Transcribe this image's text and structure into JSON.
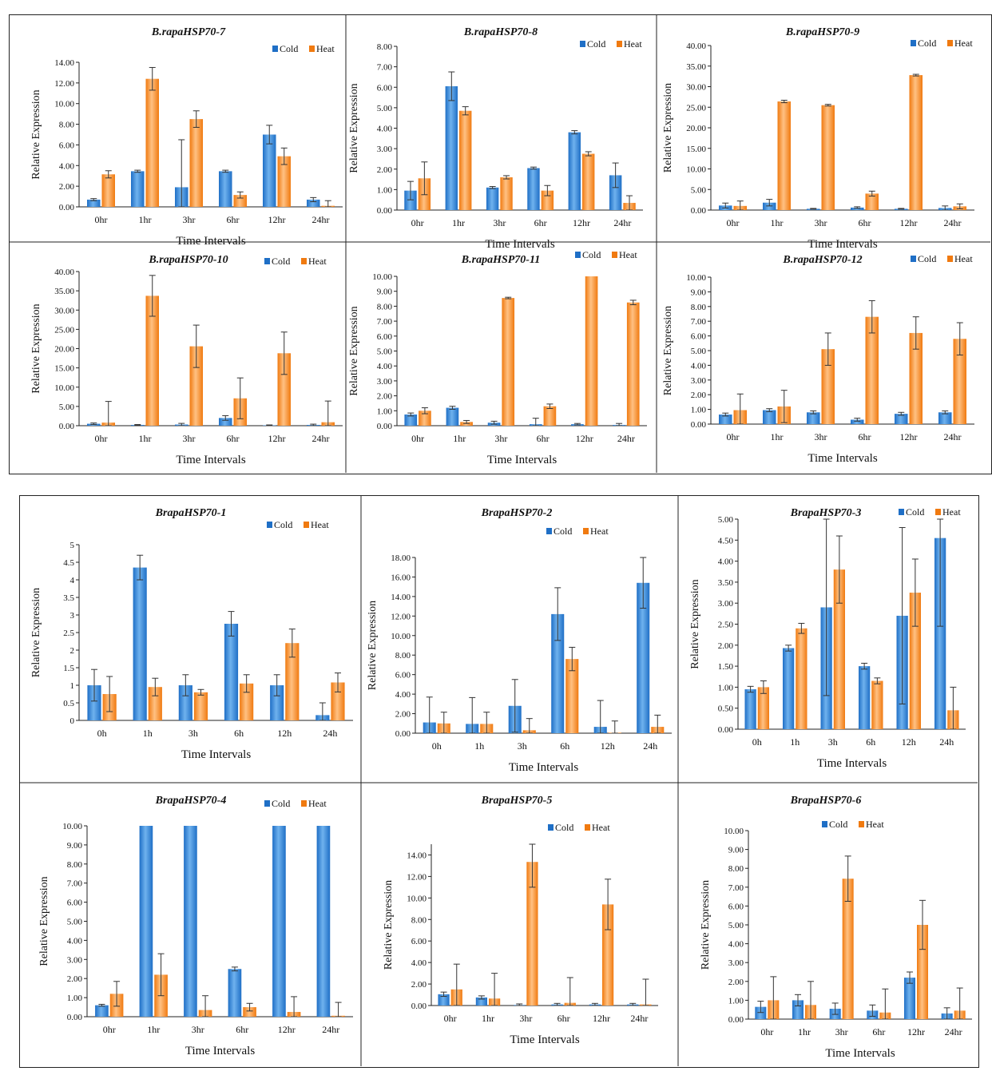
{
  "colors": {
    "cold": "#1f6fc6",
    "cold_light": "#6fb2ee",
    "heat": "#f07a10",
    "heat_light": "#ffc183",
    "axis": "#222222",
    "error": "#333333"
  },
  "legend": {
    "cold": "Cold",
    "heat": "Heat"
  },
  "chart_data": [
    {
      "type": "bar",
      "title": "B.rapaHSP70-7",
      "xlabel": "Time Intervals",
      "ylabel": "Relative Expression",
      "categories": [
        "0hr",
        "1hr",
        "3hr",
        "6hr",
        "12hr",
        "24hr"
      ],
      "ylim": [
        0,
        14
      ],
      "yticks": [
        "0.00",
        "2.00",
        "4.00",
        "6.00",
        "8.00",
        "10.00",
        "12.00",
        "14.00"
      ],
      "legend_position": "top-right",
      "series": [
        {
          "name": "Cold",
          "values": [
            0.7,
            3.45,
            1.9,
            3.45,
            7.0,
            0.7
          ],
          "errors": [
            0.1,
            0.1,
            4.6,
            0.1,
            0.9,
            0.2
          ]
        },
        {
          "name": "Heat",
          "values": [
            3.15,
            12.4,
            8.5,
            1.15,
            4.9,
            0.1
          ],
          "errors": [
            0.35,
            1.1,
            0.8,
            0.3,
            0.8,
            0.5
          ]
        }
      ]
    },
    {
      "type": "bar",
      "title": "B.rapaHSP70-8",
      "xlabel": "Time Intervals",
      "ylabel": "Relative Expression",
      "categories": [
        "0hr",
        "1hr",
        "3hr",
        "6hr",
        "12hr",
        "24hr"
      ],
      "ylim": [
        0,
        8
      ],
      "yticks": [
        "0.00",
        "1.00",
        "2.00",
        "3.00",
        "4.00",
        "5.00",
        "6.00",
        "7.00",
        "8.00"
      ],
      "legend_position": "top-right",
      "series": [
        {
          "name": "Cold",
          "values": [
            0.95,
            6.05,
            1.1,
            2.05,
            3.8,
            1.7
          ],
          "errors": [
            0.45,
            0.7,
            0.05,
            0.05,
            0.08,
            0.6
          ]
        },
        {
          "name": "Heat",
          "values": [
            1.55,
            4.85,
            1.6,
            0.95,
            2.75,
            0.35
          ],
          "errors": [
            0.8,
            0.2,
            0.08,
            0.25,
            0.1,
            0.35
          ]
        }
      ]
    },
    {
      "type": "bar",
      "title": "B.rapaHSP70-9",
      "xlabel": "Time Intervals",
      "ylabel": "Relative Expression",
      "categories": [
        "0hr",
        "1hr",
        "3hr",
        "6hr",
        "12hr",
        "24hr"
      ],
      "ylim": [
        0,
        40
      ],
      "yticks": [
        "0.00",
        "5.00",
        "10.00",
        "15.00",
        "20.00",
        "25.00",
        "30.00",
        "35.00",
        "40.00"
      ],
      "legend_position": "top-right",
      "series": [
        {
          "name": "Cold",
          "values": [
            1.1,
            1.8,
            0.3,
            0.6,
            0.3,
            0.5
          ],
          "errors": [
            0.6,
            0.8,
            0.1,
            0.2,
            0.1,
            0.5
          ]
        },
        {
          "name": "Heat",
          "values": [
            1.0,
            26.4,
            25.5,
            4.0,
            32.8,
            0.9
          ],
          "errors": [
            1.2,
            0.3,
            0.2,
            0.6,
            0.2,
            0.6
          ]
        }
      ]
    },
    {
      "type": "bar",
      "title": "B.rapaHSP70-10",
      "xlabel": "Time Intervals",
      "ylabel": "Relative Expression",
      "categories": [
        "0hr",
        "1hr",
        "3hr",
        "6hr",
        "12hr",
        "24hr"
      ],
      "ylim": [
        0,
        40
      ],
      "yticks": [
        "0.00",
        "5.00",
        "10.00",
        "15.00",
        "20.00",
        "25.00",
        "30.00",
        "35.00",
        "40.00"
      ],
      "legend_position": "top-right",
      "series": [
        {
          "name": "Cold",
          "values": [
            0.5,
            0.2,
            0.3,
            2.0,
            0.1,
            0.2
          ],
          "errors": [
            0.2,
            0.1,
            0.3,
            0.6,
            0.1,
            0.2
          ]
        },
        {
          "name": "Heat",
          "values": [
            0.8,
            33.7,
            20.6,
            7.1,
            18.8,
            0.9
          ],
          "errors": [
            5.5,
            5.3,
            5.5,
            5.3,
            5.5,
            5.5
          ]
        }
      ]
    },
    {
      "type": "bar",
      "title": "B.rapaHSP70-11",
      "xlabel": "Time Intervals",
      "ylabel": "Relative Expression",
      "categories": [
        "0hr",
        "1hr",
        "3hr",
        "6hr",
        "12hr",
        "24hr"
      ],
      "ylim": [
        0,
        10
      ],
      "yticks": [
        "0.00",
        "1.00",
        "2.00",
        "3.00",
        "4.00",
        "5.00",
        "6.00",
        "7.00",
        "8.00",
        "9.00",
        "10.00"
      ],
      "legend_position": "top-right",
      "series": [
        {
          "name": "Cold",
          "values": [
            0.75,
            1.2,
            0.2,
            0.1,
            0.1,
            0.05
          ],
          "errors": [
            0.1,
            0.1,
            0.1,
            0.4,
            0.05,
            0.1
          ]
        },
        {
          "name": "Heat",
          "values": [
            1.0,
            0.25,
            8.55,
            1.3,
            10.0,
            8.25
          ],
          "errors": [
            0.2,
            0.1,
            0.05,
            0.15,
            0.0,
            0.15
          ]
        }
      ]
    },
    {
      "type": "bar",
      "title": "B.rapaHSP70-12",
      "xlabel": "Time Intervals",
      "ylabel": "Relative Expression",
      "categories": [
        "0hr",
        "1hr",
        "3hr",
        "6hr",
        "12hr",
        "24hr"
      ],
      "ylim": [
        0,
        10
      ],
      "yticks": [
        "0.00",
        "1.00",
        "2.00",
        "3.00",
        "4.00",
        "5.00",
        "6.00",
        "7.00",
        "8.00",
        "9.00",
        "10.00"
      ],
      "legend_position": "top-right",
      "series": [
        {
          "name": "Cold",
          "values": [
            0.65,
            0.95,
            0.8,
            0.3,
            0.7,
            0.8
          ],
          "errors": [
            0.1,
            0.1,
            0.1,
            0.1,
            0.1,
            0.1
          ]
        },
        {
          "name": "Heat",
          "values": [
            0.95,
            1.2,
            5.1,
            7.3,
            6.2,
            5.8
          ],
          "errors": [
            1.1,
            1.1,
            1.1,
            1.1,
            1.1,
            1.1
          ]
        }
      ]
    },
    {
      "type": "bar",
      "title": "BrapaHSP70-1",
      "xlabel": "Time Intervals",
      "ylabel": "Relative Expression",
      "categories": [
        "0h",
        "1h",
        "3h",
        "6h",
        "12h",
        "24h"
      ],
      "ylim": [
        0,
        5
      ],
      "yticks": [
        "0",
        "0.5",
        "1",
        "1.5",
        "2",
        "2.5",
        "3",
        "3.5",
        "4",
        "4.5",
        "5"
      ],
      "legend_position": "top-right",
      "series": [
        {
          "name": "Cold",
          "values": [
            1.0,
            4.35,
            1.0,
            2.75,
            1.0,
            0.15
          ],
          "errors": [
            0.45,
            0.35,
            0.3,
            0.35,
            0.3,
            0.35
          ]
        },
        {
          "name": "Heat",
          "values": [
            0.75,
            0.95,
            0.8,
            1.05,
            2.2,
            1.08
          ],
          "errors": [
            0.5,
            0.25,
            0.08,
            0.25,
            0.4,
            0.27
          ]
        }
      ]
    },
    {
      "type": "bar",
      "title": "BrapaHSP70-2",
      "xlabel": "Time Intervals",
      "ylabel": "Relative Expression",
      "categories": [
        "0h",
        "1h",
        "3h",
        "6h",
        "12h",
        "24h"
      ],
      "ylim": [
        0,
        18
      ],
      "yticks": [
        "0.00",
        "2.00",
        "4.00",
        "6.00",
        "8.00",
        "10.00",
        "12.00",
        "14.00",
        "16.00",
        "18.00"
      ],
      "legend_position": "top-right",
      "series": [
        {
          "name": "Cold",
          "values": [
            1.1,
            0.95,
            2.8,
            12.2,
            0.65,
            15.4
          ],
          "errors": [
            2.6,
            2.7,
            2.7,
            2.7,
            2.7,
            2.6
          ]
        },
        {
          "name": "Heat",
          "values": [
            1.0,
            0.95,
            0.3,
            7.6,
            0.05,
            0.65
          ],
          "errors": [
            1.15,
            1.2,
            1.2,
            1.2,
            1.2,
            1.2
          ]
        }
      ]
    },
    {
      "type": "bar",
      "title": "BrapaHSP70-3",
      "xlabel": "Time Intervals",
      "ylabel": "Relative Expression",
      "categories": [
        "0h",
        "1h",
        "3h",
        "6h",
        "12h",
        "24h"
      ],
      "ylim": [
        0,
        5
      ],
      "yticks": [
        "0.00",
        "0.50",
        "1.00",
        "1.50",
        "2.00",
        "2.50",
        "3.00",
        "3.50",
        "4.00",
        "4.50",
        "5.00"
      ],
      "legend_position": "top-right",
      "series": [
        {
          "name": "Cold",
          "values": [
            0.95,
            1.93,
            2.9,
            1.5,
            2.7,
            4.55
          ],
          "errors": [
            0.07,
            0.07,
            2.1,
            0.07,
            2.1,
            2.1
          ]
        },
        {
          "name": "Heat",
          "values": [
            1.0,
            2.4,
            3.8,
            1.15,
            3.25,
            0.45
          ],
          "errors": [
            0.15,
            0.12,
            0.8,
            0.07,
            0.8,
            0.55
          ]
        }
      ]
    },
    {
      "type": "bar",
      "title": "BrapaHSP70-4",
      "xlabel": "Time Intervals",
      "ylabel": "Relative Expression",
      "categories": [
        "0hr",
        "1hr",
        "3hr",
        "6hr",
        "12hr",
        "24hr"
      ],
      "ylim": [
        0,
        10
      ],
      "yticks": [
        "0.00",
        "1.00",
        "2.00",
        "3.00",
        "4.00",
        "5.00",
        "6.00",
        "7.00",
        "8.00",
        "9.00",
        "10.00"
      ],
      "legend_position": "top-right",
      "series": [
        {
          "name": "Cold",
          "values": [
            0.6,
            10.0,
            10.0,
            2.5,
            10.0,
            10.0
          ],
          "errors": [
            0.05,
            0.0,
            0.0,
            0.1,
            0.0,
            0.0
          ]
        },
        {
          "name": "Heat",
          "values": [
            1.2,
            2.2,
            0.35,
            0.5,
            0.25,
            0.05
          ],
          "errors": [
            0.65,
            1.1,
            0.75,
            0.2,
            0.8,
            0.7
          ]
        }
      ]
    },
    {
      "type": "bar",
      "title": "BrapaHSP70-5",
      "xlabel": "Time Intervals",
      "ylabel": "Relative Expression",
      "categories": [
        "0hr",
        "1hr",
        "3hr",
        "6hr",
        "12hr",
        "24hr"
      ],
      "ylim": [
        0,
        15
      ],
      "yticks": [
        "0.00",
        "2.00",
        "4.00",
        "6.00",
        "8.00",
        "10.00",
        "12.00",
        "14.00"
      ],
      "legend_position": "top-right",
      "series": [
        {
          "name": "Cold",
          "values": [
            1.05,
            0.75,
            0.05,
            0.1,
            0.1,
            0.1
          ],
          "errors": [
            0.2,
            0.15,
            0.1,
            0.1,
            0.1,
            0.1
          ]
        },
        {
          "name": "Heat",
          "values": [
            1.5,
            0.65,
            13.35,
            0.25,
            9.4,
            0.1
          ],
          "errors": [
            2.35,
            2.35,
            2.35,
            2.35,
            2.35,
            2.35
          ]
        }
      ]
    },
    {
      "type": "bar",
      "title": "BrapaHSP70-6",
      "xlabel": "Time Intervals",
      "ylabel": "Relative Expression",
      "categories": [
        "0hr",
        "1hr",
        "3hr",
        "6hr",
        "12hr",
        "24hr"
      ],
      "ylim": [
        0,
        10
      ],
      "yticks": [
        "0.00",
        "1.00",
        "2.00",
        "3.00",
        "4.00",
        "5.00",
        "6.00",
        "7.00",
        "8.00",
        "9.00",
        "10.00"
      ],
      "legend_position": "top-right",
      "series": [
        {
          "name": "Cold",
          "values": [
            0.65,
            1.0,
            0.55,
            0.45,
            2.2,
            0.3
          ],
          "errors": [
            0.3,
            0.3,
            0.3,
            0.3,
            0.3,
            0.3
          ]
        },
        {
          "name": "Heat",
          "values": [
            1.0,
            0.75,
            7.45,
            0.35,
            5.0,
            0.45
          ],
          "errors": [
            1.25,
            1.25,
            1.2,
            1.25,
            1.3,
            1.2
          ]
        }
      ]
    }
  ]
}
